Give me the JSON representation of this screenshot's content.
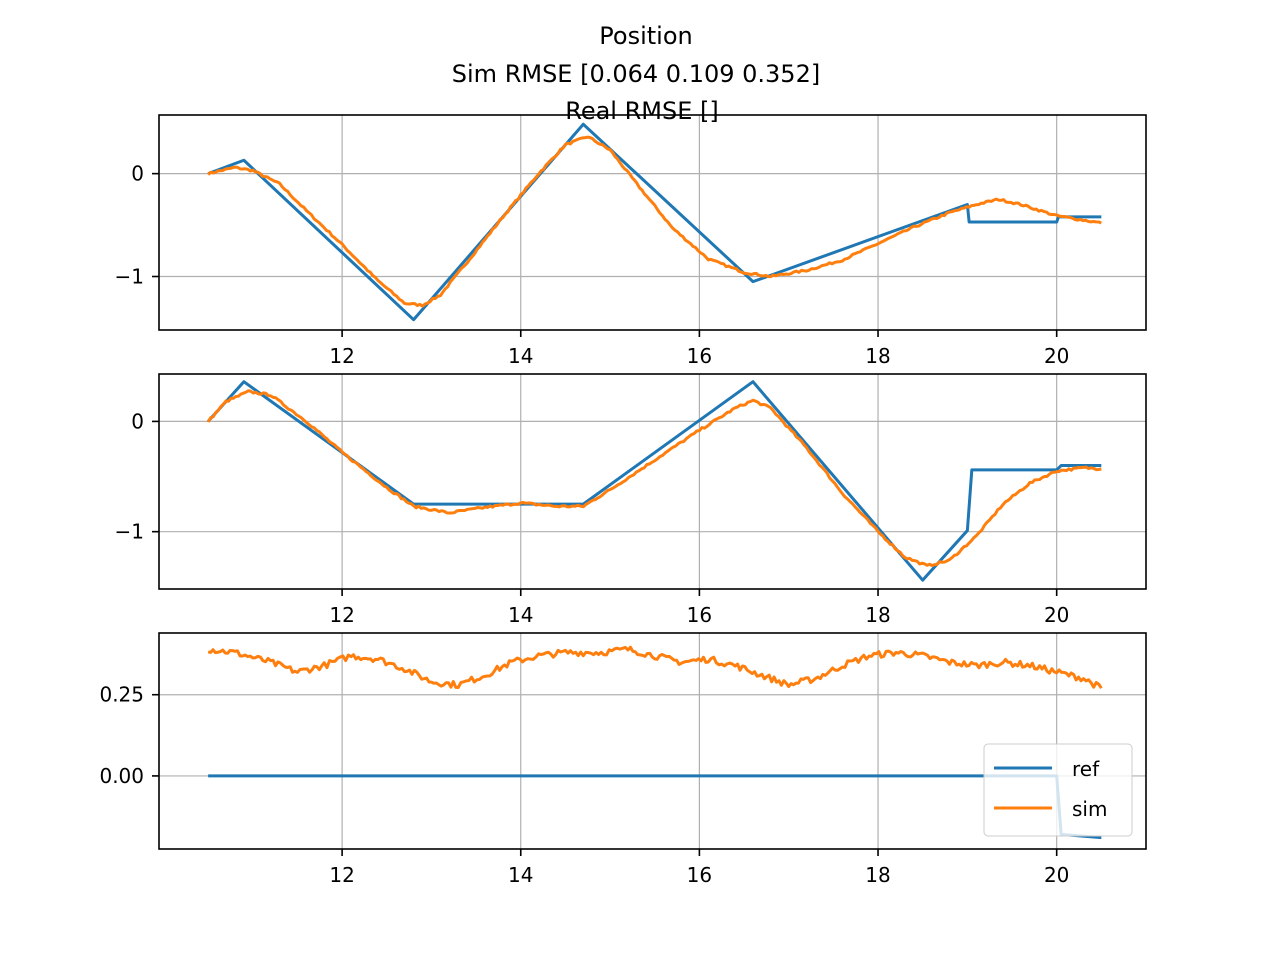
{
  "figure": {
    "title_lines": [
      "Position",
      "Sim RMSE [0.064 0.109 0.352]",
      "Real RMSE []"
    ]
  },
  "colors": {
    "ref": "#1f77b4",
    "sim": "#ff7f0e",
    "grid": "#b0b0b0",
    "axes": "#000000"
  },
  "legend": {
    "entries": [
      "ref",
      "sim"
    ],
    "placement": "lower-right",
    "subplot": 3
  },
  "chart_data": [
    {
      "type": "line",
      "title": "",
      "xlabel": "",
      "ylabel": "",
      "xlim": [
        9.95,
        21.0
      ],
      "ylim": [
        -1.52,
        0.57
      ],
      "xticks": [
        12,
        14,
        16,
        18,
        20
      ],
      "xtick_labels": [
        "12",
        "14",
        "16",
        "18",
        "20"
      ],
      "yticks": [
        0,
        -1
      ],
      "ytick_labels": [
        "0",
        "−1"
      ],
      "grid": true,
      "series": [
        {
          "name": "ref",
          "points": [
            [
              10.5,
              0.0
            ],
            [
              10.9,
              0.13
            ],
            [
              12.8,
              -1.42
            ],
            [
              14.7,
              0.48
            ],
            [
              16.6,
              -1.05
            ],
            [
              19.0,
              -0.3
            ],
            [
              19.02,
              -0.47
            ],
            [
              20.0,
              -0.47
            ],
            [
              20.02,
              -0.42
            ],
            [
              20.5,
              -0.42
            ]
          ]
        },
        {
          "name": "sim",
          "points": [
            [
              10.5,
              0.0
            ],
            [
              10.8,
              0.06
            ],
            [
              11.0,
              0.03
            ],
            [
              11.3,
              -0.1
            ],
            [
              11.6,
              -0.36
            ],
            [
              12.0,
              -0.69
            ],
            [
              12.4,
              -1.04
            ],
            [
              12.7,
              -1.26
            ],
            [
              12.9,
              -1.28
            ],
            [
              13.1,
              -1.18
            ],
            [
              13.4,
              -0.86
            ],
            [
              13.8,
              -0.42
            ],
            [
              14.2,
              0.0
            ],
            [
              14.5,
              0.28
            ],
            [
              14.75,
              0.36
            ],
            [
              15.0,
              0.23
            ],
            [
              15.3,
              -0.1
            ],
            [
              15.7,
              -0.53
            ],
            [
              16.1,
              -0.83
            ],
            [
              16.5,
              -0.96
            ],
            [
              16.8,
              -1.0
            ],
            [
              17.2,
              -0.94
            ],
            [
              17.6,
              -0.84
            ],
            [
              18.0,
              -0.68
            ],
            [
              18.4,
              -0.52
            ],
            [
              18.8,
              -0.38
            ],
            [
              19.1,
              -0.3
            ],
            [
              19.35,
              -0.25
            ],
            [
              19.6,
              -0.3
            ],
            [
              20.0,
              -0.41
            ],
            [
              20.5,
              -0.48
            ]
          ]
        }
      ]
    },
    {
      "type": "line",
      "title": "",
      "xlabel": "",
      "ylabel": "",
      "xlim": [
        9.95,
        21.0
      ],
      "ylim": [
        -1.52,
        0.43
      ],
      "xticks": [
        12,
        14,
        16,
        18,
        20
      ],
      "xtick_labels": [
        "12",
        "14",
        "16",
        "18",
        "20"
      ],
      "yticks": [
        0,
        -1
      ],
      "ytick_labels": [
        "0",
        "−1"
      ],
      "grid": true,
      "series": [
        {
          "name": "ref",
          "points": [
            [
              10.5,
              0.0
            ],
            [
              10.9,
              0.36
            ],
            [
              12.8,
              -0.75
            ],
            [
              14.7,
              -0.75
            ],
            [
              16.6,
              0.36
            ],
            [
              18.5,
              -1.44
            ],
            [
              19.0,
              -0.99
            ],
            [
              19.05,
              -0.44
            ],
            [
              20.0,
              -0.44
            ],
            [
              20.05,
              -0.4
            ],
            [
              20.5,
              -0.4
            ]
          ]
        },
        {
          "name": "sim",
          "points": [
            [
              10.5,
              0.0
            ],
            [
              10.7,
              0.18
            ],
            [
              10.95,
              0.27
            ],
            [
              11.2,
              0.24
            ],
            [
              11.6,
              0.0
            ],
            [
              12.0,
              -0.28
            ],
            [
              12.5,
              -0.6
            ],
            [
              12.8,
              -0.77
            ],
            [
              13.2,
              -0.83
            ],
            [
              13.6,
              -0.78
            ],
            [
              14.0,
              -0.74
            ],
            [
              14.4,
              -0.77
            ],
            [
              14.7,
              -0.77
            ],
            [
              15.0,
              -0.62
            ],
            [
              15.5,
              -0.35
            ],
            [
              16.0,
              -0.08
            ],
            [
              16.4,
              0.12
            ],
            [
              16.6,
              0.19
            ],
            [
              16.8,
              0.12
            ],
            [
              17.2,
              -0.24
            ],
            [
              17.6,
              -0.65
            ],
            [
              18.0,
              -1.0
            ],
            [
              18.3,
              -1.23
            ],
            [
              18.55,
              -1.31
            ],
            [
              18.8,
              -1.26
            ],
            [
              19.1,
              -1.04
            ],
            [
              19.4,
              -0.75
            ],
            [
              19.7,
              -0.56
            ],
            [
              20.0,
              -0.45
            ],
            [
              20.3,
              -0.42
            ],
            [
              20.5,
              -0.43
            ]
          ]
        }
      ]
    },
    {
      "type": "line",
      "title": "",
      "xlabel": "",
      "ylabel": "",
      "xlim": [
        9.95,
        21.0
      ],
      "ylim": [
        -0.225,
        0.44
      ],
      "xticks": [
        12,
        14,
        16,
        18,
        20
      ],
      "xtick_labels": [
        "12",
        "14",
        "16",
        "18",
        "20"
      ],
      "yticks": [
        0.25,
        0.0
      ],
      "ytick_labels": [
        "0.25",
        "0.00"
      ],
      "grid": true,
      "series": [
        {
          "name": "ref",
          "points": [
            [
              10.5,
              0.0
            ],
            [
              20.0,
              0.0
            ],
            [
              20.05,
              -0.18
            ],
            [
              20.5,
              -0.19
            ]
          ]
        },
        {
          "name": "sim",
          "points": [
            [
              10.5,
              0.39
            ],
            [
              10.8,
              0.38
            ],
            [
              11.2,
              0.35
            ],
            [
              11.5,
              0.32
            ],
            [
              11.8,
              0.34
            ],
            [
              12.1,
              0.37
            ],
            [
              12.4,
              0.36
            ],
            [
              12.7,
              0.33
            ],
            [
              13.0,
              0.29
            ],
            [
              13.3,
              0.28
            ],
            [
              13.6,
              0.31
            ],
            [
              13.9,
              0.35
            ],
            [
              14.2,
              0.37
            ],
            [
              14.5,
              0.38
            ],
            [
              14.9,
              0.38
            ],
            [
              15.2,
              0.39
            ],
            [
              15.5,
              0.37
            ],
            [
              15.8,
              0.35
            ],
            [
              16.1,
              0.36
            ],
            [
              16.4,
              0.34
            ],
            [
              16.7,
              0.31
            ],
            [
              17.0,
              0.28
            ],
            [
              17.3,
              0.3
            ],
            [
              17.6,
              0.34
            ],
            [
              17.9,
              0.37
            ],
            [
              18.2,
              0.38
            ],
            [
              18.5,
              0.37
            ],
            [
              18.8,
              0.35
            ],
            [
              19.1,
              0.34
            ],
            [
              19.4,
              0.35
            ],
            [
              19.7,
              0.34
            ],
            [
              20.0,
              0.32
            ],
            [
              20.3,
              0.3
            ],
            [
              20.5,
              0.27
            ]
          ]
        }
      ]
    }
  ]
}
